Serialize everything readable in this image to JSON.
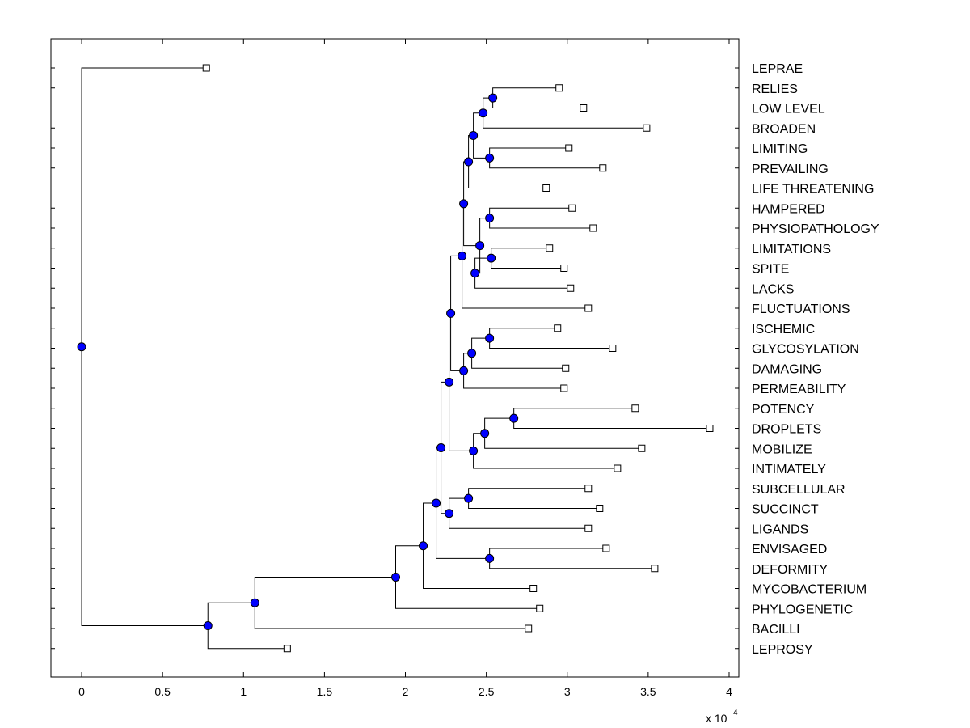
{
  "chart_data": {
    "type": "dendrogram",
    "title": "",
    "xlabel": "",
    "ylabel": "",
    "xlim": [
      -0.19,
      4.06
    ],
    "x_ticks": [
      0,
      0.5,
      1,
      1.5,
      2,
      2.5,
      3,
      3.5,
      4
    ],
    "x_tick_labels": [
      "0",
      "0.5",
      "1",
      "1.5",
      "2",
      "2.5",
      "3",
      "3.5",
      "4"
    ],
    "x_scale_base": "x 10",
    "x_scale_exponent": "4",
    "leaves": [
      {
        "label": "LEPRAE",
        "x": 0.77
      },
      {
        "label": "RELIES",
        "x": 2.95
      },
      {
        "label": "LOW LEVEL",
        "x": 3.1
      },
      {
        "label": "BROADEN",
        "x": 3.49
      },
      {
        "label": "LIMITING",
        "x": 3.01
      },
      {
        "label": "PREVAILING",
        "x": 3.22
      },
      {
        "label": "LIFE THREATENING",
        "x": 2.87
      },
      {
        "label": "HAMPERED",
        "x": 3.03
      },
      {
        "label": "PHYSIOPATHOLOGY",
        "x": 3.16
      },
      {
        "label": "LIMITATIONS",
        "x": 2.89
      },
      {
        "label": "SPITE",
        "x": 2.98
      },
      {
        "label": "LACKS",
        "x": 3.02
      },
      {
        "label": "FLUCTUATIONS",
        "x": 3.13
      },
      {
        "label": "ISCHEMIC",
        "x": 2.94
      },
      {
        "label": "GLYCOSYLATION",
        "x": 3.28
      },
      {
        "label": "DAMAGING",
        "x": 2.99
      },
      {
        "label": "PERMEABILITY",
        "x": 2.98
      },
      {
        "label": "POTENCY",
        "x": 3.42
      },
      {
        "label": "DROPLETS",
        "x": 3.88
      },
      {
        "label": "MOBILIZE",
        "x": 3.46
      },
      {
        "label": "INTIMATELY",
        "x": 3.31
      },
      {
        "label": "SUBCELLULAR",
        "x": 3.13
      },
      {
        "label": "SUCCINCT",
        "x": 3.2
      },
      {
        "label": "LIGANDS",
        "x": 3.13
      },
      {
        "label": "ENVISAGED",
        "x": 3.24
      },
      {
        "label": "DEFORMITY",
        "x": 3.54
      },
      {
        "label": "MYCOBACTERIUM",
        "x": 2.79
      },
      {
        "label": "PHYLOGENETIC",
        "x": 2.83
      },
      {
        "label": "BACILLI",
        "x": 2.76
      },
      {
        "label": "LEPROSY",
        "x": 1.27
      }
    ],
    "nodes": [
      {
        "id": "n_relies_lowlevel",
        "x": 2.54,
        "children": [
          "RELIES",
          "LOW LEVEL"
        ]
      },
      {
        "id": "n_broaden",
        "x": 2.48,
        "children": [
          "n_relies_lowlevel",
          "BROADEN"
        ]
      },
      {
        "id": "n_limiting_prevailing",
        "x": 2.52,
        "children": [
          "LIMITING",
          "PREVAILING"
        ]
      },
      {
        "id": "n_top5",
        "x": 2.42,
        "children": [
          "n_broaden",
          "n_limiting_prevailing"
        ]
      },
      {
        "id": "n_top6",
        "x": 2.39,
        "children": [
          "n_top5",
          "LIFE THREATENING"
        ]
      },
      {
        "id": "n_hampered_physio",
        "x": 2.52,
        "children": [
          "HAMPERED",
          "PHYSIOPATHOLOGY"
        ]
      },
      {
        "id": "n_limitations_spite",
        "x": 2.53,
        "children": [
          "LIMITATIONS",
          "SPITE"
        ]
      },
      {
        "id": "n_lacks",
        "x": 2.43,
        "children": [
          "n_limitations_spite",
          "LACKS"
        ]
      },
      {
        "id": "n_mid5",
        "x": 2.46,
        "children": [
          "n_hampered_physio",
          "n_lacks"
        ]
      },
      {
        "id": "n_top11",
        "x": 2.36,
        "children": [
          "n_top6",
          "n_mid5"
        ]
      },
      {
        "id": "n_fluct",
        "x": 2.35,
        "children": [
          "n_top11",
          "FLUCTUATIONS"
        ]
      },
      {
        "id": "n_isch_glyco",
        "x": 2.52,
        "children": [
          "ISCHEMIC",
          "GLYCOSYLATION"
        ]
      },
      {
        "id": "n_damaging",
        "x": 2.41,
        "children": [
          "n_isch_glyco",
          "DAMAGING"
        ]
      },
      {
        "id": "n_perm",
        "x": 2.36,
        "children": [
          "n_damaging",
          "PERMEABILITY"
        ]
      },
      {
        "id": "n_upper",
        "x": 2.28,
        "children": [
          "n_fluct",
          "n_perm"
        ]
      },
      {
        "id": "n_potency_droplets",
        "x": 2.67,
        "children": [
          "POTENCY",
          "DROPLETS"
        ]
      },
      {
        "id": "n_mobilize",
        "x": 2.49,
        "children": [
          "n_potency_droplets",
          "MOBILIZE"
        ]
      },
      {
        "id": "n_intimately",
        "x": 2.42,
        "children": [
          "n_mobilize",
          "INTIMATELY"
        ]
      },
      {
        "id": "n_upper2",
        "x": 2.27,
        "children": [
          "n_upper",
          "n_intimately"
        ]
      },
      {
        "id": "n_subcell_succinct",
        "x": 2.39,
        "children": [
          "SUBCELLULAR",
          "SUCCINCT"
        ]
      },
      {
        "id": "n_ligands",
        "x": 2.27,
        "children": [
          "n_subcell_succinct",
          "LIGANDS"
        ]
      },
      {
        "id": "n_upper3",
        "x": 2.22,
        "children": [
          "n_upper2",
          "n_ligands"
        ]
      },
      {
        "id": "n_envisaged_deform",
        "x": 2.52,
        "children": [
          "ENVISAGED",
          "DEFORMITY"
        ]
      },
      {
        "id": "n_upper4",
        "x": 2.19,
        "children": [
          "n_upper3",
          "n_envisaged_deform"
        ]
      },
      {
        "id": "n_myco",
        "x": 2.11,
        "children": [
          "n_upper4",
          "MYCOBACTERIUM"
        ]
      },
      {
        "id": "n_phylo",
        "x": 1.94,
        "children": [
          "n_myco",
          "PHYLOGENETIC"
        ]
      },
      {
        "id": "n_bacilli",
        "x": 1.07,
        "children": [
          "n_phylo",
          "BACILLI"
        ]
      },
      {
        "id": "n_leprosy",
        "x": 0.78,
        "children": [
          "n_bacilli",
          "LEPROSY"
        ]
      },
      {
        "id": "n_root",
        "x": 0.0,
        "children": [
          "LEPRAE",
          "n_leprosy"
        ]
      }
    ],
    "colors": {
      "node_fill": "#0000ff",
      "node_stroke": "#000000",
      "line": "#000000",
      "leaf_fill": "#ffffff"
    }
  }
}
